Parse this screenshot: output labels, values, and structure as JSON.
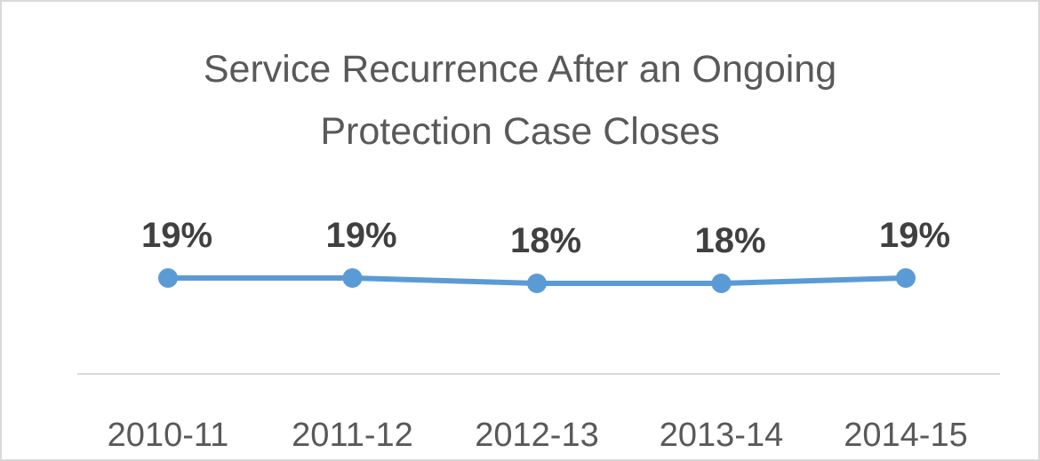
{
  "chart_data": {
    "type": "line",
    "title": "Service Recurrence After an Ongoing Protection Case Closes",
    "title_lines": [
      "Service Recurrence After an Ongoing",
      "Protection Case Closes"
    ],
    "categories": [
      "2010-11",
      "2011-12",
      "2012-13",
      "2013-14",
      "2014-15"
    ],
    "series": [
      {
        "values": [
          19,
          19,
          18,
          18,
          19
        ],
        "labels": [
          "19%",
          "19%",
          "18%",
          "18%",
          "19%"
        ],
        "color": "#5b9bd5"
      }
    ],
    "xlabel": "",
    "ylabel": "",
    "value_unit": "%",
    "y_axis_visible": false,
    "grid": false,
    "legend": "none",
    "data_labels": "above"
  }
}
